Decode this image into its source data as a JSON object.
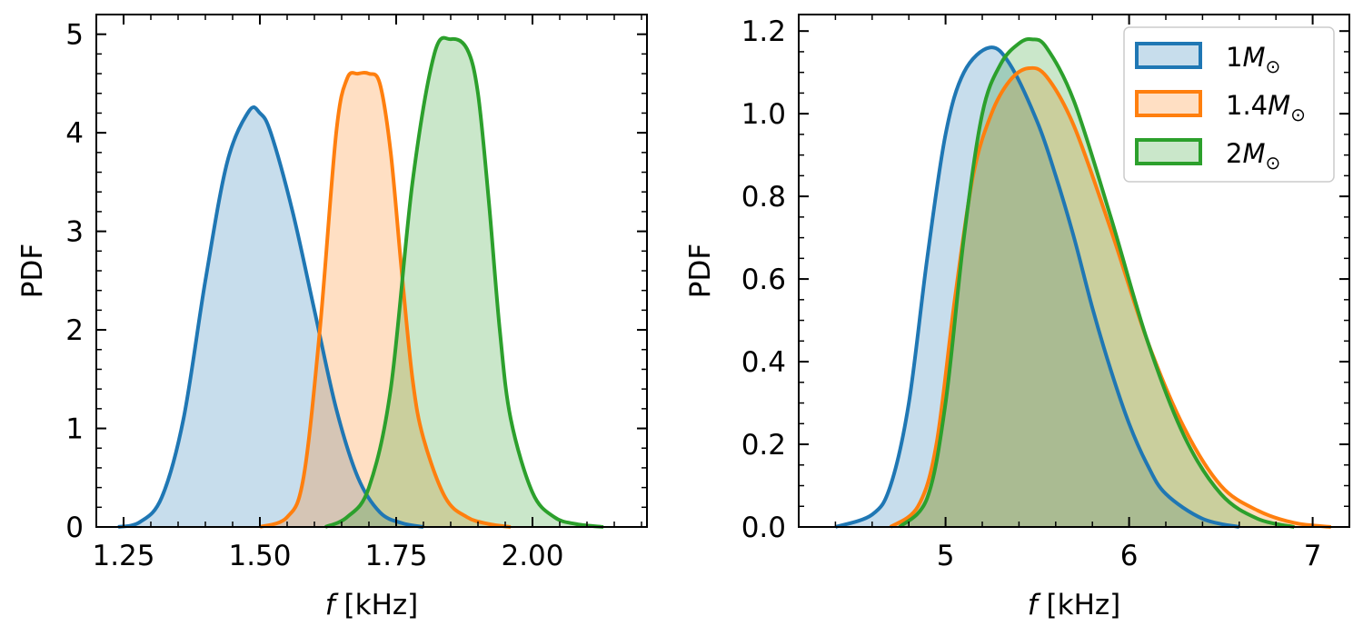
{
  "chart_data": [
    {
      "type": "area",
      "title": "",
      "xlabel": "f [kHz]",
      "ylabel": "PDF",
      "xlim": [
        1.2,
        2.21
      ],
      "ylim": [
        0,
        5.2
      ],
      "xticks": [
        1.25,
        1.5,
        1.75,
        2.0
      ],
      "xtick_labels": [
        "1.25",
        "1.50",
        "1.75",
        "2.00"
      ],
      "yticks": [
        0,
        1,
        2,
        3,
        4,
        5
      ],
      "ytick_labels": [
        "0",
        "1",
        "2",
        "3",
        "4",
        "5"
      ],
      "grid": false,
      "legend": null,
      "series": [
        {
          "color": "#1f77b4",
          "x": [
            1.24,
            1.28,
            1.32,
            1.36,
            1.4,
            1.44,
            1.48,
            1.5,
            1.52,
            1.56,
            1.6,
            1.64,
            1.68,
            1.72,
            1.76,
            1.8
          ],
          "y": [
            0.0,
            0.05,
            0.3,
            1.1,
            2.5,
            3.7,
            4.22,
            4.2,
            4.0,
            3.2,
            2.2,
            1.2,
            0.5,
            0.15,
            0.04,
            0.0
          ]
        },
        {
          "color": "#ff7f0e",
          "x": [
            1.5,
            1.55,
            1.58,
            1.61,
            1.64,
            1.66,
            1.68,
            1.7,
            1.72,
            1.74,
            1.76,
            1.78,
            1.8,
            1.84,
            1.88,
            1.92,
            1.96
          ],
          "y": [
            0.0,
            0.1,
            0.5,
            2.0,
            4.0,
            4.55,
            4.6,
            4.6,
            4.5,
            3.8,
            2.6,
            1.5,
            0.9,
            0.3,
            0.1,
            0.03,
            0.0
          ]
        },
        {
          "color": "#2ca02c",
          "x": [
            1.62,
            1.66,
            1.7,
            1.74,
            1.78,
            1.82,
            1.85,
            1.88,
            1.9,
            1.92,
            1.94,
            1.96,
            2.0,
            2.04,
            2.08,
            2.13
          ],
          "y": [
            0.0,
            0.1,
            0.4,
            1.4,
            3.5,
            4.8,
            4.95,
            4.85,
            4.4,
            3.3,
            2.0,
            1.1,
            0.35,
            0.1,
            0.03,
            0.0
          ]
        }
      ]
    },
    {
      "type": "area",
      "title": "",
      "xlabel": "f [kHz]",
      "ylabel": "PDF",
      "xlim": [
        4.2,
        7.2
      ],
      "ylim": [
        0,
        1.24
      ],
      "xticks": [
        5,
        6,
        7
      ],
      "xtick_labels": [
        "5",
        "6",
        "7"
      ],
      "yticks": [
        0.0,
        0.2,
        0.4,
        0.6,
        0.8,
        1.0,
        1.2
      ],
      "ytick_labels": [
        "0.0",
        "0.2",
        "0.4",
        "0.6",
        "0.8",
        "1.0",
        "1.2"
      ],
      "grid": false,
      "legend": "top-right",
      "series": [
        {
          "name": "1M_⊙",
          "color": "#1f77b4",
          "x": [
            4.4,
            4.6,
            4.7,
            4.8,
            4.9,
            5.0,
            5.1,
            5.24,
            5.35,
            5.5,
            5.6,
            5.7,
            5.8,
            5.9,
            6.0,
            6.1,
            6.2,
            6.4,
            6.6
          ],
          "y": [
            0.0,
            0.03,
            0.1,
            0.3,
            0.65,
            0.95,
            1.1,
            1.16,
            1.12,
            0.98,
            0.85,
            0.7,
            0.53,
            0.38,
            0.25,
            0.15,
            0.08,
            0.02,
            0.0
          ]
        },
        {
          "name": "1.4M_⊙",
          "color": "#ff7f0e",
          "x": [
            4.7,
            4.85,
            4.95,
            5.05,
            5.15,
            5.25,
            5.35,
            5.45,
            5.55,
            5.7,
            5.9,
            6.1,
            6.3,
            6.5,
            6.7,
            6.9,
            7.1
          ],
          "y": [
            0.0,
            0.05,
            0.2,
            0.55,
            0.85,
            1.0,
            1.08,
            1.11,
            1.09,
            0.97,
            0.72,
            0.45,
            0.24,
            0.1,
            0.04,
            0.01,
            0.0
          ]
        },
        {
          "name": "2M_⊙",
          "color": "#2ca02c",
          "x": [
            4.75,
            4.9,
            5.0,
            5.1,
            5.2,
            5.3,
            5.4,
            5.47,
            5.55,
            5.7,
            5.9,
            6.1,
            6.3,
            6.5,
            6.7,
            6.9
          ],
          "y": [
            0.0,
            0.07,
            0.3,
            0.7,
            1.0,
            1.12,
            1.17,
            1.18,
            1.16,
            1.03,
            0.75,
            0.45,
            0.22,
            0.08,
            0.02,
            0.0
          ]
        }
      ]
    }
  ],
  "legend_entries": [
    {
      "base": "1",
      "sym": "M",
      "sub": "⊙"
    },
    {
      "base": "1.4",
      "sym": "M",
      "sub": "⊙"
    },
    {
      "base": "2",
      "sym": "M",
      "sub": "⊙"
    }
  ],
  "axis_text": {
    "var": "f",
    "unit": " [kHz]",
    "ylabel": "PDF"
  }
}
